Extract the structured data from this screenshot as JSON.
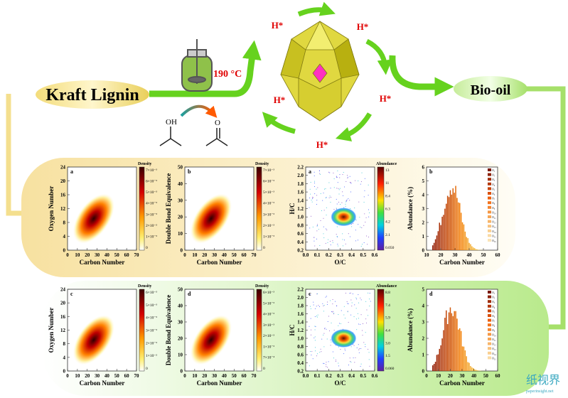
{
  "labels": {
    "source": "Kraft Lignin",
    "temperature": "190 °C",
    "product": "Bio-oil",
    "active_sites": [
      "H*",
      "H*",
      "H*",
      "H*",
      "H*"
    ],
    "alcohol": "OH",
    "ketone": "O"
  },
  "panels": [
    {
      "letter": "a",
      "kind": "density",
      "ylabel": "Oxygen Number",
      "xlabel": "Carbon Number",
      "xticks": [
        "0",
        "10",
        "20",
        "30",
        "40",
        "50",
        "60",
        "70"
      ],
      "yticks": [
        "0",
        "4",
        "8",
        "12",
        "16",
        "20",
        "24"
      ],
      "colorbar_title": "Density",
      "colorbar_ticks": [
        "7×10⁻³",
        "6×10⁻³",
        "5×10⁻³",
        "4×10⁻³",
        "3×10⁻³",
        "2×10⁻³",
        "1×10⁻³",
        "0"
      ]
    },
    {
      "letter": "b",
      "kind": "density",
      "ylabel": "Double Bond Equivalence",
      "xlabel": "Carbon Number",
      "xticks": [
        "0",
        "10",
        "20",
        "30",
        "40",
        "50",
        "60",
        "70"
      ],
      "yticks": [
        "0",
        "10",
        "20",
        "30",
        "40",
        "50"
      ],
      "colorbar_title": "Density",
      "colorbar_ticks": [
        "7×10⁻³",
        "6×10⁻³",
        "5×10⁻³",
        "4×10⁻³",
        "3×10⁻³",
        "2×10⁻³",
        "1×10⁻³",
        "0"
      ]
    },
    {
      "letter": "a",
      "kind": "vk",
      "ylabel": "H/C",
      "xlabel": "O/C",
      "xticks": [
        "0.0",
        "0.1",
        "0.2",
        "0.3",
        "0.4",
        "0.5",
        "0.6"
      ],
      "yticks": [
        "0.2",
        "0.4",
        "0.6",
        "0.8",
        "1.0",
        "1.2",
        "1.4",
        "1.6",
        "1.8",
        "2.0",
        "2.2"
      ],
      "colorbar_title": "Abundance",
      "colorbar_ticks": [
        "13",
        "11",
        "8.4",
        "6.3",
        "4.2",
        "2.1",
        "0.050"
      ]
    },
    {
      "letter": "b",
      "kind": "hist",
      "ylabel": "Abundance (%)",
      "xlabel": "Carbon Number",
      "xticks": [
        "10",
        "20",
        "30",
        "40",
        "50",
        "60"
      ],
      "yticks": [
        "0",
        "1",
        "2",
        "3",
        "4",
        "5",
        "6"
      ],
      "legend": [
        "O₁",
        "O₂",
        "O₃",
        "O₄",
        "O₅",
        "O₆",
        "O₇",
        "O₈",
        "O₉",
        "O₁₀",
        "O₁₁",
        "O₁₂",
        "O₁₃",
        "O₁₄",
        "O₁₅",
        "O₁₆"
      ]
    },
    {
      "letter": "c",
      "kind": "density",
      "ylabel": "Oxygen Number",
      "xlabel": "Carbon Number",
      "xticks": [
        "0",
        "10",
        "20",
        "30",
        "40",
        "50",
        "60",
        "70"
      ],
      "yticks": [
        "0",
        "4",
        "8",
        "12",
        "16",
        "20",
        "24"
      ],
      "colorbar_title": "Density",
      "colorbar_ticks": [
        "6×10⁻³",
        "5×10⁻³",
        "4×10⁻³",
        "3×10⁻³",
        "2×10⁻³",
        "1×10⁻³",
        "0"
      ]
    },
    {
      "letter": "d",
      "kind": "density",
      "ylabel": "Double Bond Equivalence",
      "xlabel": "Carbon Number",
      "xticks": [
        "0",
        "10",
        "20",
        "30",
        "40",
        "50",
        "60",
        "70"
      ],
      "yticks": [
        "0",
        "10",
        "20",
        "30",
        "40",
        "50"
      ],
      "colorbar_title": "Density",
      "colorbar_ticks": [
        "6×10⁻³",
        "5×10⁻³",
        "4×10⁻³",
        "3×10⁻³",
        "2×10⁻³",
        "1×10⁻³",
        "7×10⁻⁴",
        "0"
      ]
    },
    {
      "letter": "c",
      "kind": "vk",
      "ylabel": "H/C",
      "xlabel": "O/C",
      "xticks": [
        "0.0",
        "0.1",
        "0.2",
        "0.3",
        "0.4",
        "0.5",
        "0.6"
      ],
      "yticks": [
        "0.2",
        "0.4",
        "0.6",
        "0.8",
        "1.0",
        "1.2",
        "1.4",
        "1.6",
        "1.8",
        "2.0",
        "2.2"
      ],
      "colorbar_title": "Abundance",
      "colorbar_ticks": [
        "8.8",
        "7.4",
        "5.9",
        "4.4",
        "3.0",
        "1.5",
        "0.060"
      ]
    },
    {
      "letter": "d",
      "kind": "hist",
      "ylabel": "Abundance (%)",
      "xlabel": "Carbon Number",
      "xticks": [
        "0",
        "10",
        "20",
        "30",
        "40",
        "50",
        "60"
      ],
      "yticks": [
        "0",
        "1",
        "2",
        "3",
        "4",
        "5"
      ],
      "legend": [
        "O₁",
        "O₂",
        "O₃",
        "O₄",
        "O₅",
        "O₆",
        "O₇",
        "O₈",
        "O₉",
        "O₁₀",
        "O₁₁",
        "O₁₂",
        "O₁₃",
        "O₁₄",
        "O₁₅"
      ]
    }
  ],
  "watermark": {
    "name": "纸视界",
    "url": "paperinsight.net"
  }
}
